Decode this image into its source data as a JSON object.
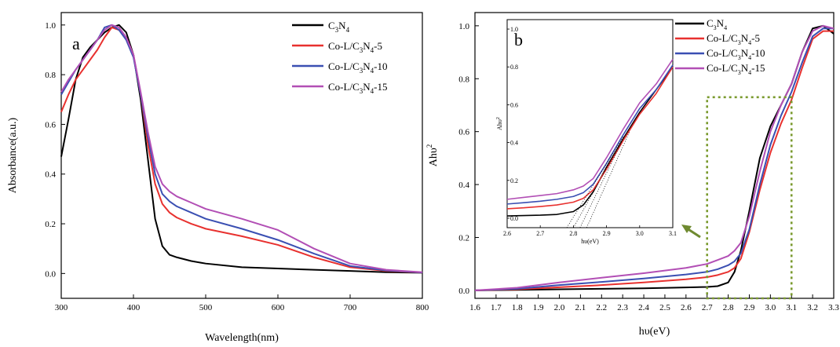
{
  "chart_data": [
    {
      "id": "a",
      "type": "line",
      "panel_label": "a",
      "xlabel": "Wavelength(nm)",
      "ylabel": "Absorbance(a.u.)",
      "xlim": [
        300,
        800
      ],
      "ylim": [
        -0.1,
        1.05
      ],
      "xticks": [
        300,
        400,
        500,
        600,
        700,
        800
      ],
      "yticks": [
        0.0,
        0.2,
        0.4,
        0.6,
        0.8,
        1.0
      ],
      "xtick_labels": [
        "300",
        "400",
        "500",
        "600",
        "700",
        "800"
      ],
      "ytick_labels": [
        "0.0",
        "0.2",
        "0.4",
        "0.6",
        "0.8",
        "1.0"
      ],
      "legend_position": "top-right",
      "series": [
        {
          "base": "C",
          "sub1": "3",
          "mid": "N",
          "sub2": "4",
          "suffix": "",
          "color": "#000000",
          "x": [
            300,
            310,
            320,
            330,
            340,
            350,
            360,
            370,
            380,
            390,
            400,
            410,
            420,
            430,
            440,
            450,
            460,
            480,
            500,
            550,
            600,
            650,
            700,
            750,
            800
          ],
          "y": [
            0.47,
            0.62,
            0.78,
            0.87,
            0.91,
            0.94,
            0.97,
            0.99,
            1.0,
            0.97,
            0.88,
            0.7,
            0.46,
            0.22,
            0.11,
            0.075,
            0.065,
            0.05,
            0.04,
            0.025,
            0.02,
            0.015,
            0.01,
            0.005,
            0.003
          ]
        },
        {
          "base": "Co-L/C",
          "sub1": "3",
          "mid": "N",
          "sub2": "4",
          "suffix": "-5",
          "color": "#e8312f",
          "x": [
            300,
            310,
            320,
            330,
            340,
            350,
            360,
            370,
            380,
            390,
            400,
            410,
            420,
            430,
            440,
            450,
            460,
            480,
            500,
            550,
            600,
            650,
            700,
            750,
            800
          ],
          "y": [
            0.65,
            0.72,
            0.78,
            0.82,
            0.86,
            0.9,
            0.95,
            0.99,
            0.98,
            0.95,
            0.88,
            0.72,
            0.52,
            0.36,
            0.28,
            0.245,
            0.225,
            0.2,
            0.18,
            0.15,
            0.115,
            0.065,
            0.025,
            0.01,
            0.004
          ]
        },
        {
          "base": "Co-L/C",
          "sub1": "3",
          "mid": "N",
          "sub2": "4",
          "suffix": "-10",
          "color": "#3a4fb2",
          "x": [
            300,
            310,
            320,
            330,
            340,
            350,
            360,
            370,
            380,
            390,
            400,
            410,
            420,
            430,
            440,
            450,
            460,
            480,
            500,
            550,
            600,
            650,
            700,
            750,
            800
          ],
          "y": [
            0.72,
            0.77,
            0.82,
            0.86,
            0.9,
            0.94,
            0.99,
            1.0,
            0.98,
            0.94,
            0.87,
            0.72,
            0.55,
            0.4,
            0.32,
            0.29,
            0.27,
            0.245,
            0.22,
            0.18,
            0.135,
            0.08,
            0.03,
            0.012,
            0.004
          ]
        },
        {
          "base": "Co-L/C",
          "sub1": "3",
          "mid": "N",
          "sub2": "4",
          "suffix": "-15",
          "color": "#b24fb5",
          "x": [
            300,
            310,
            320,
            330,
            340,
            350,
            360,
            370,
            380,
            390,
            400,
            410,
            420,
            430,
            440,
            450,
            460,
            480,
            500,
            550,
            600,
            650,
            700,
            750,
            800
          ],
          "y": [
            0.73,
            0.78,
            0.82,
            0.86,
            0.9,
            0.94,
            0.98,
            1.0,
            0.99,
            0.95,
            0.88,
            0.73,
            0.57,
            0.43,
            0.36,
            0.33,
            0.31,
            0.285,
            0.26,
            0.22,
            0.175,
            0.1,
            0.04,
            0.015,
            0.005
          ]
        }
      ]
    },
    {
      "id": "b",
      "type": "line",
      "panel_label": "b",
      "xlabel": "hυ(eV)",
      "ylabel_base": "Ahυ",
      "ylabel_sup": "2",
      "xlim": [
        1.6,
        3.3
      ],
      "ylim": [
        -0.03,
        1.05
      ],
      "xticks": [
        1.6,
        1.7,
        1.8,
        1.9,
        2.0,
        2.1,
        2.2,
        2.3,
        2.4,
        2.5,
        2.6,
        2.7,
        2.8,
        2.9,
        3.0,
        3.1,
        3.2,
        3.3
      ],
      "yticks": [
        0.0,
        0.2,
        0.4,
        0.6,
        0.8,
        1.0
      ],
      "xtick_labels": [
        "1.6",
        "1.7",
        "1.8",
        "1.9",
        "2.0",
        "2.1",
        "2.2",
        "2.3",
        "2.4",
        "2.5",
        "2.6",
        "2.7",
        "2.8",
        "2.9",
        "3.0",
        "3.1",
        "3.2",
        "3.3"
      ],
      "ytick_labels": [
        "0.0",
        "0.2",
        "0.4",
        "0.6",
        "0.8",
        "1.0"
      ],
      "legend_position": "top-center",
      "zoom_box": {
        "x": [
          2.7,
          3.1
        ],
        "y": [
          -0.03,
          0.73
        ]
      },
      "series": [
        {
          "base": "C",
          "sub1": "3",
          "mid": "N",
          "sub2": "4",
          "suffix": "",
          "color": "#000000",
          "x": [
            1.6,
            1.8,
            2.0,
            2.2,
            2.4,
            2.6,
            2.7,
            2.75,
            2.8,
            2.83,
            2.86,
            2.9,
            2.95,
            3.0,
            3.05,
            3.1,
            3.15,
            3.2,
            3.25,
            3.3
          ],
          "y": [
            0.0,
            0.002,
            0.004,
            0.006,
            0.008,
            0.011,
            0.013,
            0.016,
            0.03,
            0.07,
            0.15,
            0.3,
            0.5,
            0.62,
            0.7,
            0.78,
            0.9,
            0.99,
            1.0,
            0.97
          ]
        },
        {
          "base": "Co-L/C",
          "sub1": "3",
          "mid": "N",
          "sub2": "4",
          "suffix": "-5",
          "color": "#e8312f",
          "x": [
            1.6,
            1.8,
            2.0,
            2.2,
            2.4,
            2.6,
            2.7,
            2.75,
            2.8,
            2.83,
            2.86,
            2.9,
            2.95,
            3.0,
            3.05,
            3.1,
            3.15,
            3.2,
            3.25,
            3.3
          ],
          "y": [
            0.0,
            0.004,
            0.012,
            0.02,
            0.03,
            0.042,
            0.05,
            0.058,
            0.07,
            0.085,
            0.12,
            0.22,
            0.38,
            0.52,
            0.63,
            0.72,
            0.84,
            0.95,
            0.98,
            0.98
          ]
        },
        {
          "base": "Co-L/C",
          "sub1": "3",
          "mid": "N",
          "sub2": "4",
          "suffix": "-10",
          "color": "#3a4fb2",
          "x": [
            1.6,
            1.8,
            2.0,
            2.2,
            2.4,
            2.6,
            2.7,
            2.75,
            2.8,
            2.83,
            2.86,
            2.9,
            2.95,
            3.0,
            3.05,
            3.1,
            3.15,
            3.2,
            3.25,
            3.3
          ],
          "y": [
            0.0,
            0.006,
            0.02,
            0.032,
            0.045,
            0.06,
            0.07,
            0.08,
            0.095,
            0.11,
            0.14,
            0.23,
            0.4,
            0.55,
            0.66,
            0.75,
            0.86,
            0.96,
            0.99,
            0.99
          ]
        },
        {
          "base": "Co-L/C",
          "sub1": "3",
          "mid": "N",
          "sub2": "4",
          "suffix": "-15",
          "color": "#b24fb5",
          "x": [
            1.6,
            1.8,
            2.0,
            2.2,
            2.4,
            2.6,
            2.7,
            2.75,
            2.8,
            2.83,
            2.86,
            2.9,
            2.95,
            3.0,
            3.05,
            3.1,
            3.15,
            3.2,
            3.25,
            3.3
          ],
          "y": [
            0.0,
            0.01,
            0.03,
            0.048,
            0.065,
            0.085,
            0.1,
            0.115,
            0.13,
            0.15,
            0.18,
            0.28,
            0.45,
            0.6,
            0.7,
            0.78,
            0.9,
            0.98,
            1.0,
            0.99
          ]
        }
      ]
    },
    {
      "id": "b-inset",
      "type": "line",
      "xlabel": "hυ(eV)",
      "ylabel_base": "Ahυ",
      "ylabel_sup": "2",
      "xlim": [
        2.6,
        3.1
      ],
      "ylim": [
        -0.05,
        1.05
      ],
      "xticks": [
        2.6,
        2.7,
        2.8,
        2.9,
        3.0,
        3.1
      ],
      "yticks": [
        0.0,
        0.2,
        0.4,
        0.6,
        0.8,
        1.0
      ],
      "xtick_labels": [
        "2.6",
        "2.7",
        "2.8",
        "2.9",
        "3.0",
        "3.1"
      ],
      "ytick_labels": [
        "0.0",
        "0.2",
        "0.4",
        "0.6",
        "0.8",
        "1.0"
      ],
      "series": [
        {
          "color": "#000000",
          "x": [
            2.6,
            2.65,
            2.7,
            2.75,
            2.8,
            2.83,
            2.86,
            2.9,
            2.95,
            3.0,
            3.05,
            3.1
          ],
          "y": [
            0.012,
            0.014,
            0.016,
            0.02,
            0.035,
            0.07,
            0.14,
            0.27,
            0.42,
            0.56,
            0.68,
            0.8
          ]
        },
        {
          "color": "#e8312f",
          "x": [
            2.6,
            2.65,
            2.7,
            2.75,
            2.8,
            2.83,
            2.86,
            2.9,
            2.95,
            3.0,
            3.05,
            3.1
          ],
          "y": [
            0.05,
            0.055,
            0.062,
            0.07,
            0.085,
            0.105,
            0.15,
            0.26,
            0.41,
            0.55,
            0.66,
            0.8
          ]
        },
        {
          "color": "#3a4fb2",
          "x": [
            2.6,
            2.65,
            2.7,
            2.75,
            2.8,
            2.83,
            2.86,
            2.9,
            2.95,
            3.0,
            3.05,
            3.1
          ],
          "y": [
            0.075,
            0.082,
            0.09,
            0.1,
            0.115,
            0.135,
            0.18,
            0.29,
            0.44,
            0.58,
            0.68,
            0.81
          ]
        },
        {
          "color": "#b24fb5",
          "x": [
            2.6,
            2.65,
            2.7,
            2.75,
            2.8,
            2.83,
            2.86,
            2.9,
            2.95,
            3.0,
            3.05,
            3.1
          ],
          "y": [
            0.1,
            0.11,
            0.12,
            0.13,
            0.15,
            0.17,
            0.21,
            0.32,
            0.47,
            0.61,
            0.71,
            0.84
          ]
        }
      ],
      "tangent_lines": [
        {
          "x": [
            2.78,
            2.95
          ],
          "y": [
            -0.05,
            0.43
          ]
        },
        {
          "x": [
            2.8,
            2.95
          ],
          "y": [
            -0.05,
            0.42
          ]
        },
        {
          "x": [
            2.82,
            2.95
          ],
          "y": [
            -0.05,
            0.42
          ]
        },
        {
          "x": [
            2.84,
            2.97
          ],
          "y": [
            -0.05,
            0.46
          ]
        }
      ]
    }
  ]
}
